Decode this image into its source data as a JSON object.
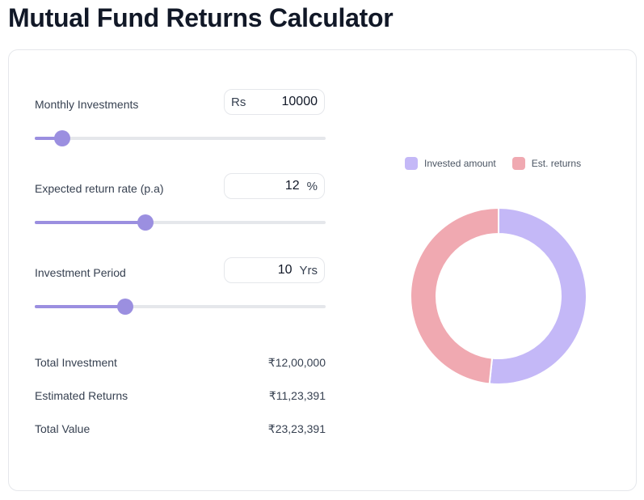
{
  "page": {
    "title": "Mutual Fund Returns Calculator"
  },
  "inputs": {
    "monthly": {
      "label": "Monthly Investments",
      "prefix": "Rs",
      "value": "10000",
      "slider_fraction": 0.095
    },
    "rate": {
      "label": "Expected return rate (p.a)",
      "value": "12",
      "suffix": "%",
      "slider_fraction": 0.38
    },
    "period": {
      "label": "Investment Period",
      "value": "10",
      "suffix": "Yrs",
      "slider_fraction": 0.31
    }
  },
  "summary": {
    "total_investment": {
      "label": "Total Investment",
      "value": "₹12,00,000"
    },
    "estimated_returns": {
      "label": "Estimated Returns",
      "value": "₹11,23,391"
    },
    "total_value": {
      "label": "Total Value",
      "value": "₹23,23,391"
    }
  },
  "chart": {
    "legend": [
      {
        "label": "Invested amount",
        "color": "#c4b8f7"
      },
      {
        "label": "Est. returns",
        "color": "#f0a9b1"
      }
    ]
  },
  "chart_data": {
    "type": "pie",
    "style": "donut",
    "labels": [
      "Invested amount",
      "Est. returns"
    ],
    "values": [
      1200000,
      1123391
    ],
    "colors": [
      "#c4b8f7",
      "#f0a9b1"
    ],
    "legend_position": "top"
  }
}
